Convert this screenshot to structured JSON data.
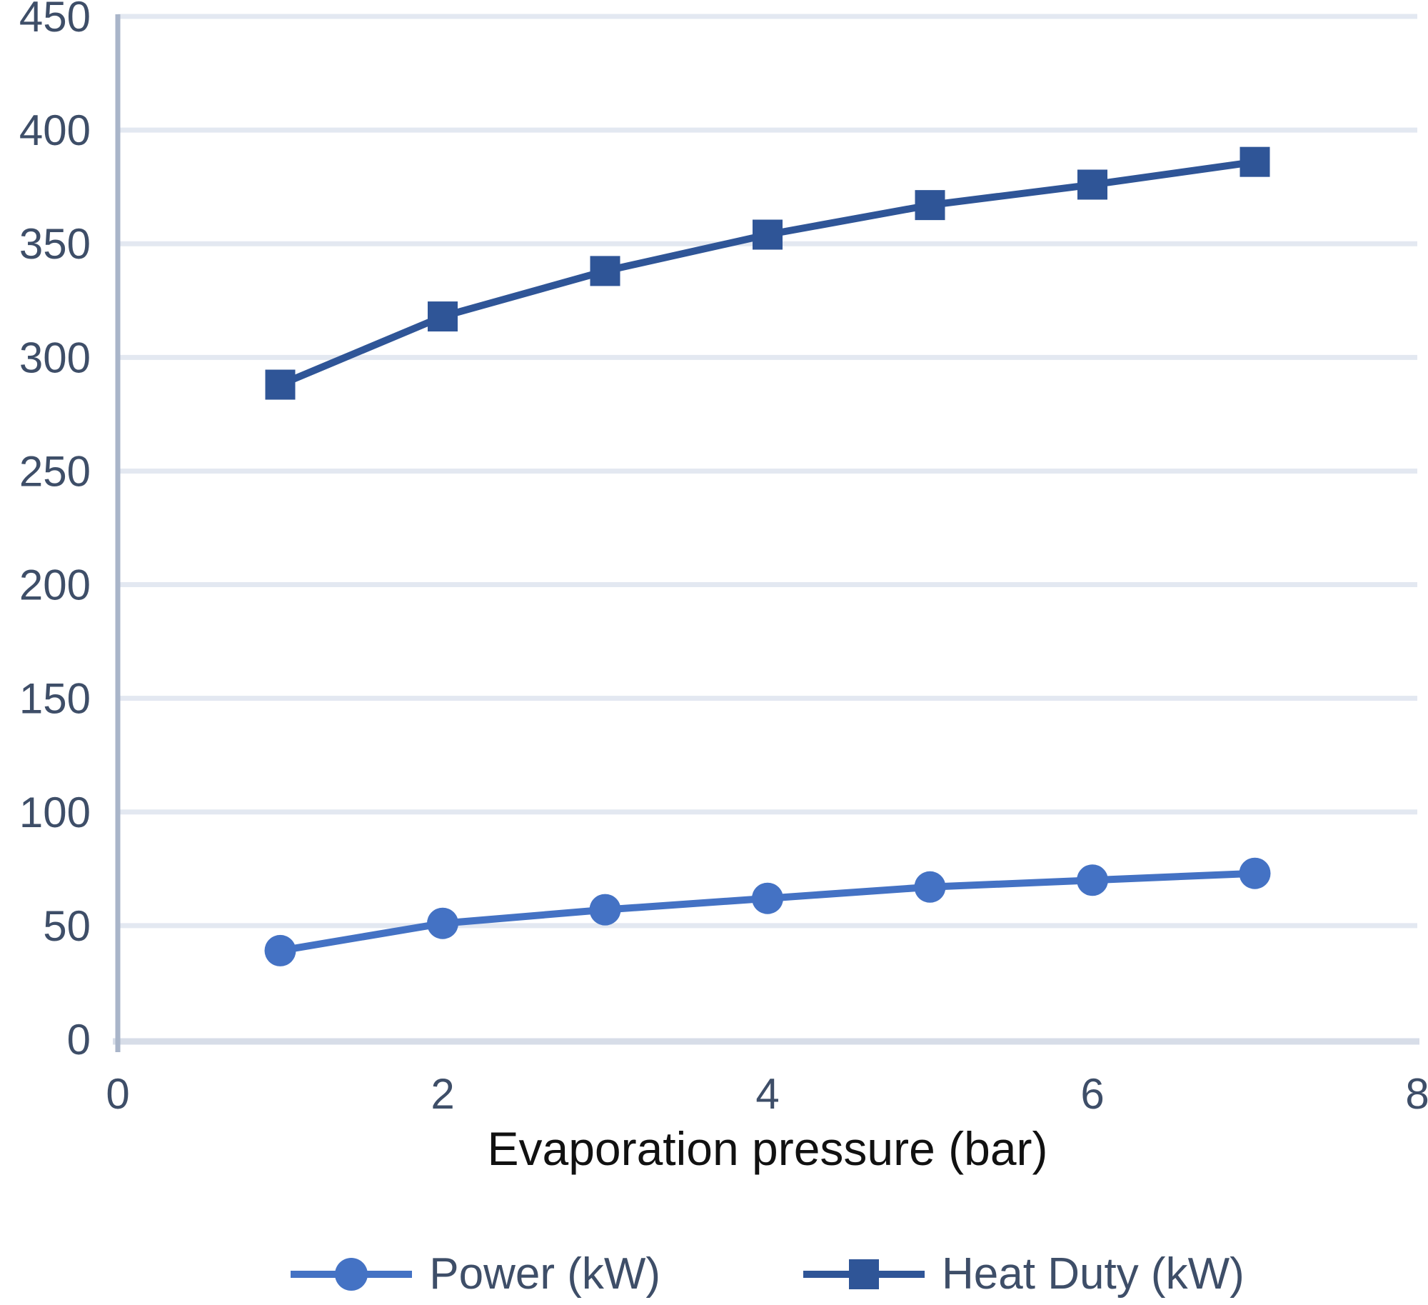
{
  "chart_data": {
    "type": "line",
    "title": "",
    "xlabel": "Evaporation pressure (bar)",
    "ylabel": "",
    "x": [
      1,
      2,
      3,
      4,
      5,
      6,
      7
    ],
    "series": [
      {
        "name": "Power (kW)",
        "values": [
          39,
          51,
          57,
          62,
          67,
          70,
          73
        ],
        "color": "#4472C4",
        "marker": "circle"
      },
      {
        "name": "Heat Duty (kW)",
        "values": [
          288,
          318,
          338,
          354,
          367,
          376,
          386
        ],
        "color": "#2F5597",
        "marker": "square"
      }
    ],
    "xlim": [
      0,
      8
    ],
    "ylim": [
      0,
      450
    ],
    "xticks": [
      0,
      2,
      4,
      6,
      8
    ],
    "yticks": [
      0,
      50,
      100,
      150,
      200,
      250,
      300,
      350,
      400,
      450
    ],
    "grid": "horizontal",
    "legend_position": "bottom",
    "colors": {
      "grid_line": "#E3E8F1",
      "y_axis_line": "#A9B5C9",
      "x_axis_line": "#D7DDE8",
      "tick_text": "#3E4E68",
      "xlabel_text": "#111111",
      "legend_text": "#3E4E68"
    }
  }
}
